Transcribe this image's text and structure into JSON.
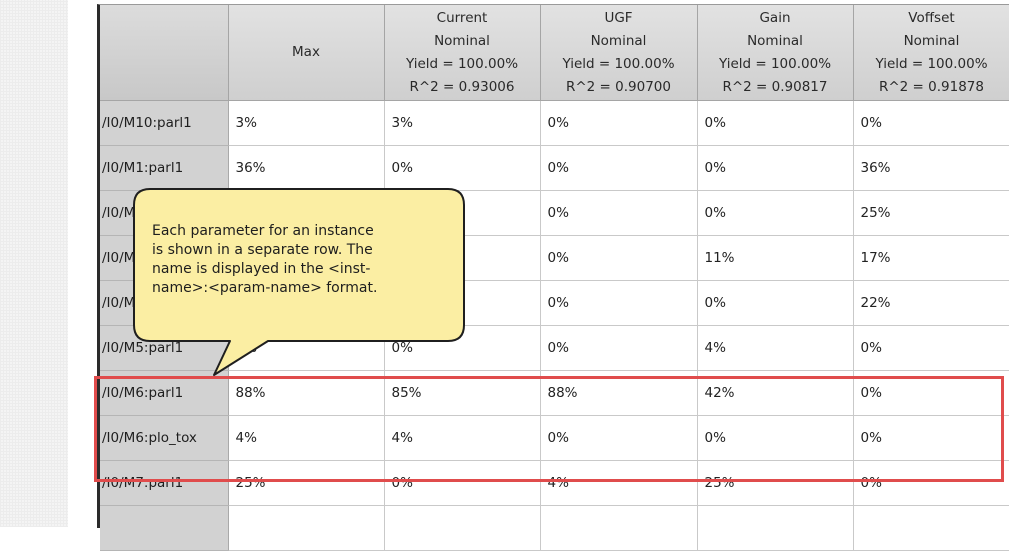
{
  "table": {
    "headers": [
      {
        "lines": [
          "Max"
        ]
      },
      {
        "lines": [
          "Current",
          "Nominal",
          "Yield = 100.00%",
          "R^2 = 0.93006"
        ]
      },
      {
        "lines": [
          "UGF",
          "Nominal",
          "Yield = 100.00%",
          "R^2 = 0.90700"
        ]
      },
      {
        "lines": [
          "Gain",
          "Nominal",
          "Yield = 100.00%",
          "R^2 = 0.90817"
        ]
      },
      {
        "lines": [
          "Voffset",
          "Nominal",
          "Yield = 100.00%",
          "R^2 = 0.91878"
        ]
      }
    ],
    "rows": [
      {
        "name": "/I0/M10:parl1",
        "cells": [
          "3%",
          "3%",
          "0%",
          "0%",
          "0%"
        ]
      },
      {
        "name": "/I0/M1:parl1",
        "cells": [
          "36%",
          "0%",
          "0%",
          "0%",
          "36%"
        ]
      },
      {
        "name": "/I0/M",
        "cells": [
          "",
          "",
          "0%",
          "0%",
          "25%"
        ]
      },
      {
        "name": "/I0/M",
        "cells": [
          "",
          "",
          "0%",
          "11%",
          "17%"
        ]
      },
      {
        "name": "/I0/M",
        "cells": [
          "",
          "",
          "0%",
          "0%",
          "22%"
        ]
      },
      {
        "name": "/I0/M5:parl1",
        "cells": [
          "4%",
          "0%",
          "0%",
          "4%",
          "0%"
        ]
      },
      {
        "name": "/I0/M6:parl1",
        "cells": [
          "88%",
          "85%",
          "88%",
          "42%",
          "0%"
        ]
      },
      {
        "name": "/I0/M6:plo_tox",
        "cells": [
          "4%",
          "4%",
          "0%",
          "0%",
          "0%"
        ]
      },
      {
        "name": "/I0/M7:parl1",
        "cells": [
          "25%",
          "0%",
          "4%",
          "25%",
          "0%"
        ]
      },
      {
        "name": "",
        "cells": [
          "",
          "",
          "",
          "",
          ""
        ]
      }
    ]
  },
  "callout": {
    "lines": [
      "Each parameter for an instance",
      "is shown in a separate row. The",
      "name is displayed in the <inst-",
      "name>:<param-name> format."
    ]
  },
  "colors": {
    "callout_fill": "#fbeea3",
    "highlight_border": "#e04c4c",
    "row_header_bg": "#d2d2d2"
  }
}
